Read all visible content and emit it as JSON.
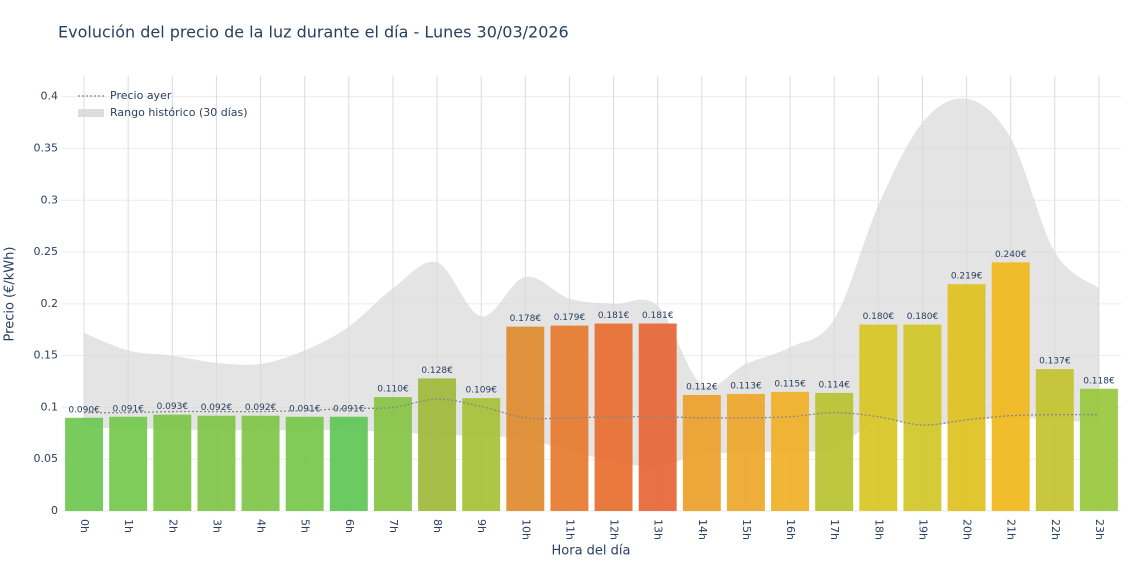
{
  "chart_data": {
    "type": "bar",
    "title": "Evolución del precio de la luz durante el día - Lunes 30/03/2026",
    "xlabel": "Hora del día",
    "ylabel": "Precio (€/kWh)",
    "categories": [
      "0h",
      "1h",
      "2h",
      "3h",
      "4h",
      "5h",
      "6h",
      "7h",
      "8h",
      "9h",
      "10h",
      "11h",
      "12h",
      "13h",
      "14h",
      "15h",
      "16h",
      "17h",
      "18h",
      "19h",
      "20h",
      "21h",
      "22h",
      "23h"
    ],
    "values": [
      0.09,
      0.091,
      0.093,
      0.092,
      0.092,
      0.091,
      0.091,
      0.11,
      0.128,
      0.109,
      0.178,
      0.179,
      0.181,
      0.181,
      0.112,
      0.113,
      0.115,
      0.114,
      0.18,
      0.18,
      0.219,
      0.24,
      0.137,
      0.118
    ],
    "value_labels": [
      "0.090€",
      "0.091€",
      "0.093€",
      "0.092€",
      "0.092€",
      "0.091€",
      "0.091€",
      "0.110€",
      "0.128€",
      "0.109€",
      "0.178€",
      "0.179€",
      "0.181€",
      "0.181€",
      "0.112€",
      "0.113€",
      "0.115€",
      "0.114€",
      "0.180€",
      "0.180€",
      "0.219€",
      "0.240€",
      "0.137€",
      "0.118€"
    ],
    "colors": [
      "#6cc84f",
      "#73c84c",
      "#7cc548",
      "#80c446",
      "#7fc447",
      "#76c74b",
      "#5ec655",
      "#85c443",
      "#a0b83a",
      "#a7c035",
      "#e08a2c",
      "#e67a2e",
      "#e86e30",
      "#e66535",
      "#eba02a",
      "#eea72a",
      "#f0b026",
      "#b7c22f",
      "#d8c623",
      "#d1c626",
      "#e0c120",
      "#f1b71b",
      "#c4c22c",
      "#98c83d"
    ],
    "yesterday": {
      "name": "Precio ayer",
      "color": "#888888",
      "values": [
        0.095,
        0.095,
        0.096,
        0.096,
        0.096,
        0.097,
        0.099,
        0.1,
        0.108,
        0.101,
        0.09,
        0.09,
        0.091,
        0.091,
        0.09,
        0.09,
        0.091,
        0.095,
        0.091,
        0.083,
        0.088,
        0.092,
        0.093,
        0.093
      ]
    },
    "range": {
      "name": "Rango histórico (30 días)",
      "color": "#d9d9d9",
      "upper": [
        0.172,
        0.155,
        0.15,
        0.143,
        0.142,
        0.155,
        0.178,
        0.215,
        0.24,
        0.188,
        0.226,
        0.205,
        0.2,
        0.198,
        0.122,
        0.142,
        0.158,
        0.185,
        0.295,
        0.375,
        0.398,
        0.36,
        0.25,
        0.215
      ],
      "lower": [
        0.08,
        0.08,
        0.079,
        0.078,
        0.078,
        0.078,
        0.078,
        0.076,
        0.074,
        0.072,
        0.07,
        0.058,
        0.048,
        0.043,
        0.055,
        0.056,
        0.058,
        0.06,
        0.088,
        0.082,
        0.087,
        0.09,
        0.088,
        0.085
      ]
    },
    "ylim": [
      0,
      0.42
    ],
    "yticks": [
      0,
      0.05,
      0.1,
      0.15,
      0.2,
      0.25,
      0.3,
      0.35,
      0.4
    ],
    "grid": true,
    "legend": "top-left"
  }
}
